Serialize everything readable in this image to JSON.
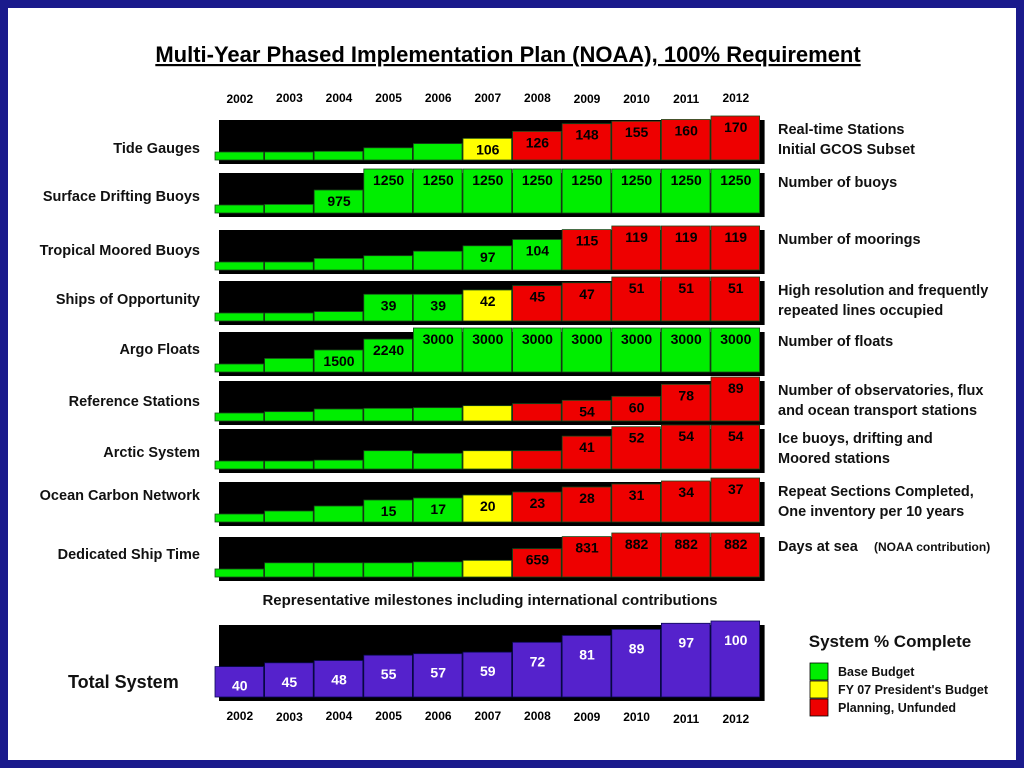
{
  "colors": {
    "base": "#00ee00",
    "president": "#ffff00",
    "planning": "#ee0000",
    "total": "#5522cc",
    "frame": "#1a1a8c"
  },
  "chart_data": {
    "type": "bar",
    "title": "Multi-Year Phased Implementation Plan (NOAA), 100% Requirement",
    "years": [
      "2002",
      "2003",
      "2004",
      "2005",
      "2006",
      "2007",
      "2008",
      "2009",
      "2010",
      "2011",
      "2012"
    ],
    "status_legend": {
      "G": "Base Budget",
      "Y": "FY 07 President's Budget",
      "R": "Planning, Unfunded"
    },
    "series": [
      {
        "name": "Tide Gauges",
        "values": [
          67,
          67,
          69,
          79,
          91,
          106,
          126,
          148,
          155,
          160,
          170
        ],
        "status": [
          "G",
          "G",
          "G",
          "G",
          "G",
          "Y",
          "R",
          "R",
          "R",
          "R",
          "R"
        ],
        "note": [
          "Real-time Stations",
          "Initial GCOS Subset"
        ]
      },
      {
        "name": "Surface Drifting Buoys",
        "values": [
          779,
          787,
          975,
          1250,
          1250,
          1250,
          1250,
          1250,
          1250,
          1250,
          1250
        ],
        "status": [
          "G",
          "G",
          "G",
          "G",
          "G",
          "G",
          "G",
          "G",
          "G",
          "G",
          "G"
        ],
        "note": [
          "Number of buoys"
        ]
      },
      {
        "name": "Tropical Moored Buoys",
        "values": [
          79,
          79,
          83,
          86,
          91,
          97,
          104,
          115,
          119,
          119,
          119
        ],
        "status": [
          "G",
          "G",
          "G",
          "G",
          "G",
          "G",
          "G",
          "R",
          "R",
          "R",
          "R"
        ],
        "note": [
          "Number of moorings"
        ]
      },
      {
        "name": "Ships of Opportunity",
        "values": [
          26,
          26,
          27,
          39,
          39,
          42,
          45,
          47,
          51,
          51,
          51
        ],
        "status": [
          "G",
          "G",
          "G",
          "G",
          "G",
          "Y",
          "R",
          "R",
          "R",
          "R",
          "R"
        ],
        "note": [
          "High resolution and frequently",
          "repeated lines occupied"
        ]
      },
      {
        "name": "Argo Floats",
        "values": [
          544,
          923,
          1500,
          2240,
          3000,
          3000,
          3000,
          3000,
          3000,
          3000,
          3000
        ],
        "status": [
          "G",
          "G",
          "G",
          "G",
          "G",
          "G",
          "G",
          "G",
          "G",
          "G",
          "G"
        ],
        "note": [
          "Number of floats"
        ]
      },
      {
        "name": "Reference Stations",
        "values": [
          35,
          37,
          41,
          42,
          43,
          46,
          49,
          54,
          60,
          78,
          89
        ],
        "status": [
          "G",
          "G",
          "G",
          "G",
          "G",
          "Y",
          "R",
          "R",
          "R",
          "R",
          "R"
        ],
        "note": [
          "Number of observatories, flux",
          "and ocean transport stations"
        ]
      },
      {
        "name": "Arctic System",
        "values": [
          12,
          12,
          13,
          24,
          21,
          24,
          24,
          41,
          52,
          54,
          54
        ],
        "status": [
          "G",
          "G",
          "G",
          "G",
          "G",
          "Y",
          "R",
          "R",
          "R",
          "R",
          "R"
        ],
        "note": [
          "Ice buoys, drifting and",
          "Moored stations"
        ]
      },
      {
        "name": "Ocean Carbon Network",
        "values": [
          1,
          4,
          9,
          15,
          17,
          20,
          23,
          28,
          31,
          34,
          37
        ],
        "status": [
          "G",
          "G",
          "G",
          "G",
          "G",
          "Y",
          "R",
          "R",
          "R",
          "R",
          "R"
        ],
        "note": [
          "Repeat Sections Completed,",
          "One inventory per 10 years"
        ]
      },
      {
        "name": "Dedicated Ship Time",
        "values": [
          370,
          458,
          458,
          458,
          472,
          493,
          659,
          831,
          882,
          882,
          882
        ],
        "status": [
          "G",
          "G",
          "G",
          "G",
          "G",
          "Y",
          "R",
          "R",
          "R",
          "R",
          "R"
        ],
        "note": [
          "Days at sea",
          "(NOAA contribution)"
        ]
      }
    ],
    "milestone_caption": "Representative milestones including international contributions",
    "total": {
      "name": "Total System",
      "unit": "System % Complete",
      "values": [
        40,
        45,
        48,
        55,
        57,
        59,
        72,
        81,
        89,
        97,
        100
      ]
    }
  }
}
